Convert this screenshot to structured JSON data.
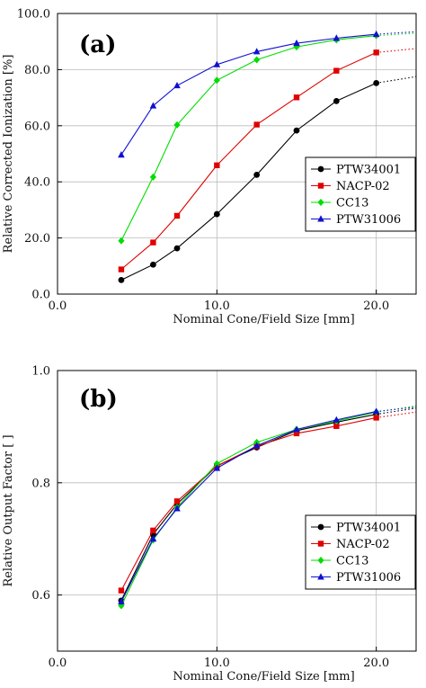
{
  "chart_data": [
    {
      "type": "line",
      "panel_label": "(a)",
      "xlabel": "Nominal Cone/Field Size [mm]",
      "ylabel": "Relative Corrected Ionization [%]",
      "xlim": [
        0,
        22.5
      ],
      "ylim": [
        0,
        100
      ],
      "xticks": [
        0,
        10,
        20
      ],
      "xtick_labels": [
        "0.0",
        "10.0",
        "20.0"
      ],
      "yticks": [
        0,
        20,
        40,
        60,
        80,
        100
      ],
      "ytick_labels": [
        "0.0",
        "20.0",
        "40.0",
        "60.0",
        "80.0",
        "100.0"
      ],
      "grid": true,
      "legend_position": "center-right",
      "series": [
        {
          "name": "PTW34001",
          "color": "#000000",
          "marker": "circle",
          "x": [
            4,
            6,
            7.5,
            10,
            12.5,
            15,
            17.5,
            20
          ],
          "y": [
            5,
            10.5,
            16.3,
            28.5,
            42.5,
            58.3,
            68.8,
            75.2
          ],
          "extrapolation": {
            "x": [
              20,
              22.5
            ],
            "y": [
              75.2,
              77.5
            ]
          }
        },
        {
          "name": "NACP-02",
          "color": "#e00000",
          "marker": "square",
          "x": [
            4,
            6,
            7.5,
            10,
            12.5,
            15,
            17.5,
            20
          ],
          "y": [
            8.8,
            18.4,
            27.9,
            45.9,
            60.4,
            70.1,
            79.6,
            86.1
          ],
          "extrapolation": {
            "x": [
              20,
              22.5
            ],
            "y": [
              86.1,
              87.5
            ]
          }
        },
        {
          "name": "CC13",
          "color": "#00dd00",
          "marker": "diamond",
          "x": [
            4,
            6,
            7.5,
            10,
            12.5,
            15,
            17.5,
            20
          ],
          "y": [
            19,
            41.7,
            60.3,
            76.2,
            83.5,
            88.1,
            90.6,
            92.1
          ],
          "extrapolation": {
            "x": [
              20,
              22.5
            ],
            "y": [
              92.1,
              93
            ]
          }
        },
        {
          "name": "PTW31006",
          "color": "#1010d0",
          "marker": "triangle",
          "x": [
            4,
            6,
            7.5,
            10,
            12.5,
            15,
            17.5,
            20
          ],
          "y": [
            49.6,
            67.1,
            74.3,
            81.8,
            86.4,
            89.4,
            91.2,
            92.6
          ],
          "extrapolation": {
            "x": [
              20,
              22.5
            ],
            "y": [
              92.6,
              93.5
            ]
          }
        }
      ]
    },
    {
      "type": "line",
      "panel_label": "(b)",
      "xlabel": "Nominal Cone/Field Size [mm]",
      "ylabel": "Relative Output Factor [ ]",
      "xlim": [
        0,
        22.5
      ],
      "ylim": [
        0.5,
        1.0
      ],
      "xticks": [
        0,
        10,
        20
      ],
      "xtick_labels": [
        "0.0",
        "10.0",
        "20.0"
      ],
      "yticks": [
        0.6,
        0.8,
        1.0
      ],
      "ytick_labels": [
        "0.6",
        "0.8",
        "1.0"
      ],
      "grid": true,
      "legend_position": "center-right",
      "series": [
        {
          "name": "PTW34001",
          "color": "#000000",
          "marker": "circle",
          "x": [
            4,
            6,
            7.5,
            10,
            12.5,
            15,
            17.5,
            20
          ],
          "y": [
            0.59,
            0.708,
            0.762,
            0.83,
            0.863,
            0.893,
            0.908,
            0.922
          ],
          "extrapolation": {
            "x": [
              20,
              22.5
            ],
            "y": [
              0.922,
              0.933
            ]
          }
        },
        {
          "name": "NACP-02",
          "color": "#e00000",
          "marker": "square",
          "x": [
            4,
            6,
            7.5,
            10,
            12.5,
            15,
            17.5,
            20
          ],
          "y": [
            0.608,
            0.715,
            0.767,
            0.83,
            0.865,
            0.888,
            0.901,
            0.916
          ],
          "extrapolation": {
            "x": [
              20,
              22.5
            ],
            "y": [
              0.916,
              0.926
            ]
          }
        },
        {
          "name": "CC13",
          "color": "#00dd00",
          "marker": "diamond",
          "x": [
            4,
            6,
            7.5,
            10,
            12.5,
            15,
            17.5,
            20
          ],
          "y": [
            0.581,
            0.698,
            0.756,
            0.834,
            0.872,
            0.895,
            0.91,
            0.926
          ],
          "extrapolation": {
            "x": [
              20,
              22.5
            ],
            "y": [
              0.926,
              0.937
            ]
          }
        },
        {
          "name": "PTW31006",
          "color": "#1010d0",
          "marker": "triangle",
          "x": [
            4,
            6,
            7.5,
            10,
            12.5,
            15,
            17.5,
            20
          ],
          "y": [
            0.588,
            0.7,
            0.754,
            0.826,
            0.866,
            0.895,
            0.912,
            0.927
          ],
          "extrapolation": {
            "x": [
              20,
              22.5
            ],
            "y": [
              0.927,
              0.935
            ]
          }
        }
      ]
    }
  ]
}
